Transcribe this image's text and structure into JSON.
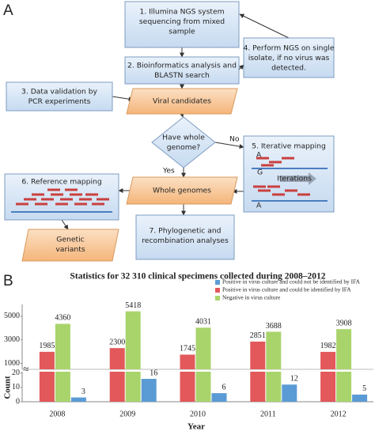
{
  "diagram": {
    "panel_label": "A",
    "nodes": [
      {
        "lines": [
          "1. Illumina NGS system",
          "sequencing from mixed",
          "sample"
        ]
      },
      {
        "lines": [
          "2. Bioinformatics analysis and",
          "BLASTN search"
        ]
      },
      {
        "lines": [
          "4. Perform NGS on single",
          "isolate, if no virus was",
          "detected."
        ]
      },
      {
        "lines": [
          "3. Data validation by",
          "PCR experiments"
        ]
      },
      {
        "lines": [
          "Viral candidates"
        ]
      },
      {
        "lines": [
          "Have whole",
          "genome?"
        ]
      },
      {
        "lines": [
          "5. Iterative mapping"
        ]
      },
      {
        "lines": [
          "6. Reference mapping"
        ]
      },
      {
        "lines": [
          "Whole genomes"
        ]
      },
      {
        "lines": [
          "Genetic",
          "variants"
        ]
      },
      {
        "lines": [
          "7. Phylogenetic and",
          "recombination analyses"
        ]
      }
    ],
    "edge_labels": [
      "No",
      "Yes"
    ],
    "mapping_labels": [
      "A",
      "G",
      "Iterations",
      "A"
    ]
  },
  "chart_data": {
    "type": "bar",
    "panel_label": "B",
    "title": "Statistics for 32 310 clinical specimens collected during 2008–2012",
    "x_label": "Year",
    "y_label": "Count",
    "categories": [
      "2008",
      "2009",
      "2010",
      "2011",
      "2012"
    ],
    "series": [
      {
        "name": "Positive in virus culture and could not be identified by IFA",
        "color": "#5b9bd5",
        "values": [
          3,
          16,
          6,
          12,
          5
        ]
      },
      {
        "name": "Positive in virus culture and could be identified by IFA",
        "color": "#e2585b",
        "values": [
          1985,
          2300,
          1745,
          2851,
          1982
        ]
      },
      {
        "name": "Negative in virus culture",
        "color": "#a9d46c",
        "values": [
          4360,
          5418,
          4031,
          3688,
          3908
        ]
      }
    ],
    "ylim": [
      500,
      6000
    ],
    "yticks": [
      1000,
      3000,
      5000
    ],
    "ylim_lower": [
      0,
      21
    ],
    "yticks_lower": [
      0,
      10,
      20
    ],
    "axis_break_mark": "≈",
    "legend": "upper right"
  }
}
